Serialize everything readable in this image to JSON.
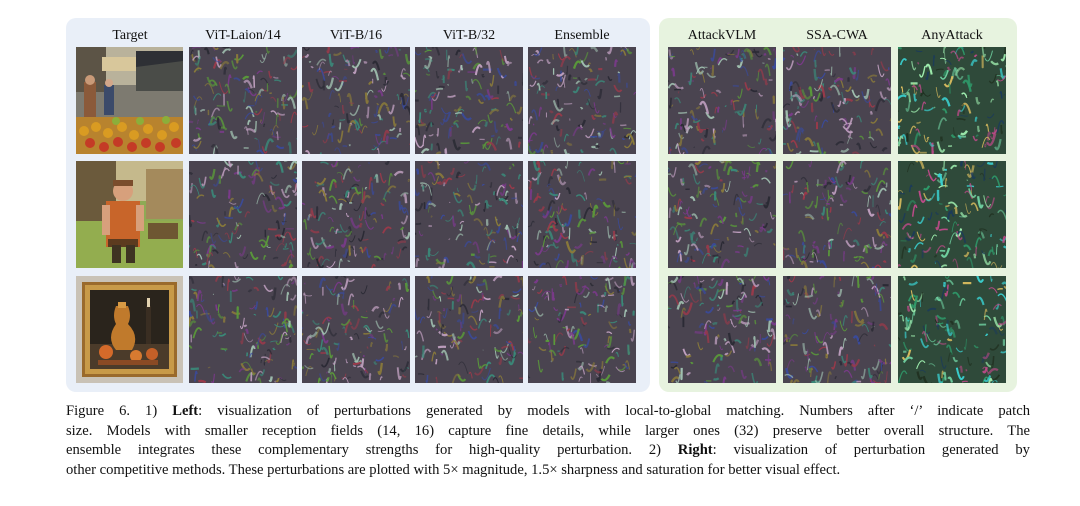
{
  "figure": {
    "left_group": {
      "columns": [
        "Target",
        "ViT-Laion/14",
        "ViT-B/16",
        "ViT-B/32",
        "Ensemble"
      ],
      "panel_color": "#e9eff8"
    },
    "right_group": {
      "columns": [
        "AttackVLM",
        "SSA-CWA",
        "AnyAttack"
      ],
      "panel_color": "#e7f3df"
    },
    "rows": [
      {
        "target_scene": "market-stall-photo"
      },
      {
        "target_scene": "costumed-man-photo"
      },
      {
        "target_scene": "framed-still-life-painting"
      }
    ]
  },
  "caption": {
    "line1_a": "Figure 6. 1)",
    "line1_b": "Left",
    "line1_c": ": visualization of perturbations generated by models with local-to-global matching. Numbers after ‘/’ indicate patch",
    "line2": "size. Models with smaller reception fields (14, 16) capture fine details, while larger ones (32) preserve better overall structure. The",
    "line3_a": "ensemble integrates these complementary strengths for high-quality perturbation. 2)",
    "line3_b": "Right",
    "line3_c": ": visualization of perturbation generated by",
    "line4": "other competitive methods. These perturbations are plotted with 5× magnitude, 1.5× sharpness and saturation for better visual effect."
  }
}
